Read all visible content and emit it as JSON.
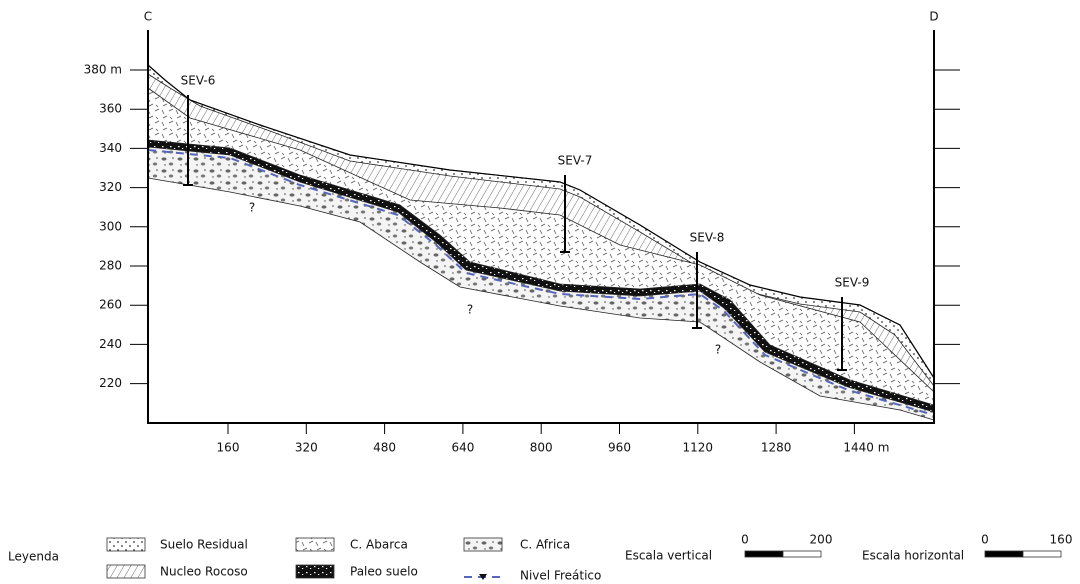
{
  "corners": {
    "left": "C",
    "right": "D"
  },
  "y_axis": {
    "ticks": [
      "380 m",
      "360",
      "340",
      "320",
      "300",
      "280",
      "260",
      "240",
      "220"
    ]
  },
  "x_axis": {
    "ticks": [
      "160",
      "320",
      "480",
      "640",
      "800",
      "960",
      "1120",
      "1280",
      "1440 m"
    ]
  },
  "sev": [
    "SEV-6",
    "SEV-7",
    "SEV-8",
    "SEV-9"
  ],
  "unknowns": [
    "?",
    "?",
    "?"
  ],
  "legend": {
    "title": "Leyenda",
    "items": [
      "Suelo Residual",
      "Nucleo Rocoso",
      "C. Abarca",
      "Paleo suelo",
      "C. Africa",
      "Nivel Freático"
    ]
  },
  "scales": [
    {
      "label": "Escala vertical",
      "start": "0",
      "end": "200"
    },
    {
      "label": "Escala horizontal",
      "start": "0",
      "end": "160"
    }
  ]
}
